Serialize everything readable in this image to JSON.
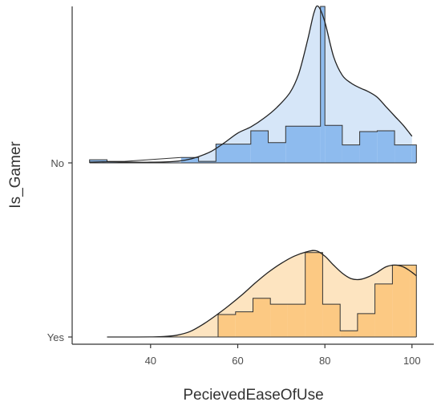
{
  "chart_data": {
    "type": "ridgeline",
    "xlabel": "PecievedEaseOfUse",
    "ylabel": "Is_Gamer",
    "xlim": [
      22,
      105
    ],
    "x_ticks": [
      "40",
      "60",
      "80",
      "100"
    ],
    "x_tick_values": [
      40,
      60,
      80,
      100
    ],
    "grid": false,
    "series": [
      {
        "name": "No",
        "color": "#8ebbee",
        "density_fill": "#d6e6f8",
        "histogram": {
          "bin_width": 4,
          "bins": [
            {
              "x0": 26,
              "x1": 30,
              "h": 0.02
            },
            {
              "x0": 30,
              "x1": 34,
              "h": 0.01
            },
            {
              "x0": 47,
              "x1": 51,
              "h": 0.035
            },
            {
              "x0": 51,
              "x1": 55,
              "h": 0.01
            },
            {
              "x0": 55,
              "x1": 59,
              "h": 0.12
            },
            {
              "x0": 59,
              "x1": 63,
              "h": 0.12
            },
            {
              "x0": 63,
              "x1": 67,
              "h": 0.205
            },
            {
              "x0": 67,
              "x1": 71,
              "h": 0.13
            },
            {
              "x0": 71,
              "x1": 75,
              "h": 0.235
            },
            {
              "x0": 75,
              "x1": 79,
              "h": 0.235
            },
            {
              "x0": 79,
              "x1": 80,
              "h": 1.0
            },
            {
              "x0": 80,
              "x1": 84,
              "h": 0.24
            },
            {
              "x0": 84,
              "x1": 88,
              "h": 0.115
            },
            {
              "x0": 88,
              "x1": 92,
              "h": 0.2
            },
            {
              "x0": 92,
              "x1": 96,
              "h": 0.205
            },
            {
              "x0": 96,
              "x1": 100,
              "h": 0.115
            },
            {
              "x0": 100,
              "x1": 101,
              "h": 0.115
            }
          ]
        },
        "density": {
          "x": [
            26,
            30,
            35,
            40,
            45,
            48,
            51,
            54,
            57,
            60,
            63,
            66,
            69,
            72,
            74,
            76,
            77.5,
            78.5,
            80,
            82,
            84,
            86,
            88,
            90,
            92,
            94,
            96,
            98,
            100
          ],
          "y": [
            0.005,
            0.007,
            0.005,
            0.004,
            0.008,
            0.018,
            0.04,
            0.075,
            0.13,
            0.19,
            0.23,
            0.285,
            0.355,
            0.45,
            0.57,
            0.78,
            0.96,
            1.0,
            0.9,
            0.68,
            0.56,
            0.51,
            0.48,
            0.455,
            0.42,
            0.36,
            0.3,
            0.24,
            0.17
          ]
        }
      },
      {
        "name": "Yes",
        "color": "#fcc983",
        "density_fill": "#fde4c0",
        "histogram": {
          "bin_width": 4,
          "bins": [
            {
              "x0": 30,
              "x1": 55.5,
              "h": 0.0
            },
            {
              "x0": 55.5,
              "x1": 59.5,
              "h": 0.25
            },
            {
              "x0": 59.5,
              "x1": 63.5,
              "h": 0.28
            },
            {
              "x0": 63.5,
              "x1": 67.5,
              "h": 0.43
            },
            {
              "x0": 67.5,
              "x1": 71.5,
              "h": 0.365
            },
            {
              "x0": 71.5,
              "x1": 75.5,
              "h": 0.365
            },
            {
              "x0": 75.5,
              "x1": 79.5,
              "h": 0.94
            },
            {
              "x0": 79.5,
              "x1": 83.5,
              "h": 0.365
            },
            {
              "x0": 83.5,
              "x1": 87.5,
              "h": 0.07
            },
            {
              "x0": 87.5,
              "x1": 91.5,
              "h": 0.26
            },
            {
              "x0": 91.5,
              "x1": 95.5,
              "h": 0.59
            },
            {
              "x0": 95.5,
              "x1": 99.5,
              "h": 0.8
            },
            {
              "x0": 99.5,
              "x1": 101,
              "h": 0.8
            }
          ]
        },
        "density": {
          "x": [
            30,
            35,
            40,
            43,
            46,
            49,
            52,
            55,
            58,
            61,
            64,
            67,
            70,
            73,
            76,
            78,
            80,
            82,
            84,
            86,
            88,
            90,
            92,
            94,
            96,
            98,
            100,
            101
          ],
          "y": [
            0.0,
            0.0,
            0.001,
            0.005,
            0.02,
            0.06,
            0.14,
            0.24,
            0.35,
            0.47,
            0.6,
            0.72,
            0.82,
            0.9,
            0.95,
            0.96,
            0.9,
            0.8,
            0.71,
            0.65,
            0.64,
            0.67,
            0.72,
            0.78,
            0.8,
            0.78,
            0.72,
            0.68
          ]
        }
      }
    ]
  }
}
